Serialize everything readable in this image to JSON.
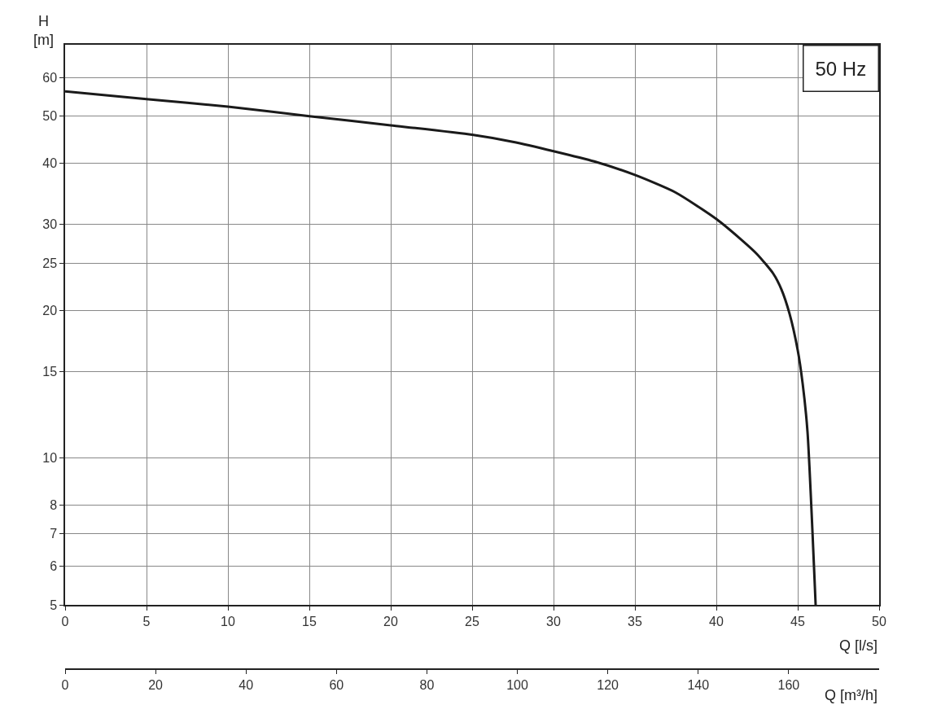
{
  "chart_data": {
    "type": "line",
    "ylabel": "H [m]",
    "xlabel": "Q [l/s]",
    "x2label": "Q [m³/h]",
    "annotations": [
      "50 Hz"
    ],
    "x": [
      0,
      5,
      10,
      15,
      20,
      25,
      27.5,
      30,
      32.5,
      35,
      37.5,
      40,
      41.5,
      42.5,
      43.5,
      44,
      44.5,
      45,
      45.3,
      45.6,
      46.1
    ],
    "series": [
      {
        "color": "#1a1a1a",
        "values": [
          56.2,
          54.2,
          52.3,
          50,
          47.9,
          45.8,
          44.3,
          42.4,
          40.4,
          37.9,
          34.9,
          30.8,
          28.0,
          26.1,
          23.8,
          22.1,
          19.7,
          16.6,
          14.2,
          11.3,
          5
        ]
      }
    ],
    "log": "y",
    "ylim": [
      5,
      70
    ],
    "yticks": [
      5,
      6,
      7,
      8,
      10,
      15,
      20,
      25,
      30,
      40,
      50,
      60
    ],
    "xlim": [
      0,
      50
    ],
    "xticks": [
      0,
      5,
      10,
      15,
      20,
      25,
      30,
      35,
      40,
      45,
      50
    ],
    "x2lim": [
      0,
      180
    ],
    "x2ticks": [
      0,
      20,
      40,
      60,
      80,
      100,
      120,
      140,
      160
    ],
    "grid": true,
    "marker": "none",
    "line_style": "solid"
  }
}
